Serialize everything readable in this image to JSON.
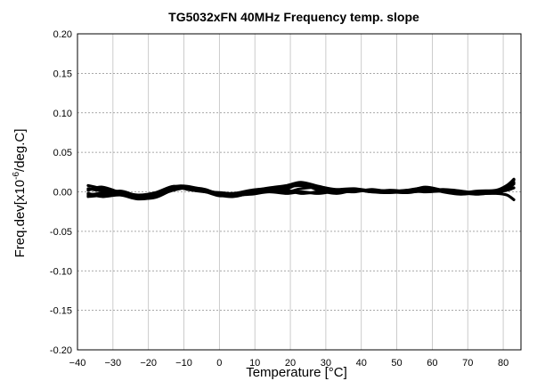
{
  "chart_data": {
    "type": "line",
    "title": "TG5032xFN 40MHz Frequency temp. slope",
    "xlabel": "Temperature [°C]",
    "ylabel_prefix": "Freq.dev[x10",
    "ylabel_exponent": "-6",
    "ylabel_suffix": "/deg.C]",
    "xlim": [
      -40,
      85
    ],
    "ylim": [
      -0.2,
      0.2
    ],
    "x_ticks": [
      -40,
      -30,
      -20,
      -10,
      0,
      10,
      20,
      30,
      40,
      50,
      60,
      70,
      80
    ],
    "x_tick_labels": [
      "−40",
      "−30",
      "−20",
      "−10",
      "0",
      "10",
      "20",
      "30",
      "40",
      "50",
      "60",
      "70",
      "80"
    ],
    "y_ticks": [
      -0.2,
      -0.15,
      -0.1,
      -0.05,
      0,
      0.05,
      0.1,
      0.15,
      0.2
    ],
    "y_tick_labels": [
      "-0.20",
      "-0.15",
      "-0.10",
      "-0.05",
      "0.00",
      "0.05",
      "0.10",
      "0.15",
      "0.20"
    ],
    "grid": {
      "x": true,
      "y": true,
      "x_style": "solid",
      "y_style": "dotted"
    },
    "line_color": "#000000",
    "series": [
      {
        "x": [
          -37,
          -33,
          -28,
          -23,
          -18,
          -13,
          -9,
          -4,
          0,
          4,
          9,
          14,
          19,
          23,
          28,
          33,
          38,
          43,
          48,
          53,
          58,
          63,
          68,
          73,
          78,
          81,
          83
        ],
        "y": [
          0.004,
          0.001,
          -0.002,
          -0.006,
          -0.003,
          0.005,
          0.004,
          0.001,
          -0.003,
          -0.004,
          0.0,
          0.003,
          0.006,
          0.008,
          0.004,
          0.001,
          0.003,
          0.0,
          -0.001,
          0.001,
          0.004,
          0.001,
          -0.002,
          0.0,
          0.001,
          0.006,
          0.015
        ]
      },
      {
        "x": [
          -37,
          -33,
          -28,
          -23,
          -18,
          -13,
          -9,
          -4,
          0,
          4,
          9,
          14,
          19,
          23,
          28,
          33,
          38,
          43,
          48,
          53,
          58,
          63,
          68,
          73,
          78,
          81,
          83
        ],
        "y": [
          -0.004,
          -0.002,
          -0.003,
          -0.008,
          -0.007,
          0.003,
          0.006,
          0.002,
          -0.002,
          -0.005,
          -0.002,
          0.001,
          0.004,
          0.01,
          0.002,
          -0.002,
          0.002,
          0.002,
          0.0,
          -0.001,
          0.002,
          0.002,
          0.0,
          -0.002,
          -0.001,
          0.003,
          0.01
        ]
      },
      {
        "x": [
          -37,
          -33,
          -28,
          -23,
          -18,
          -13,
          -9,
          -4,
          0,
          4,
          9,
          14,
          19,
          23,
          28,
          33,
          38,
          43,
          48,
          53,
          58,
          63,
          68,
          73,
          78,
          81,
          83
        ],
        "y": [
          0.008,
          0.004,
          0.0,
          -0.004,
          -0.001,
          0.007,
          0.003,
          0.0,
          -0.001,
          -0.002,
          0.002,
          0.004,
          0.0,
          0.004,
          0.006,
          0.003,
          0.004,
          0.001,
          0.0,
          0.002,
          0.005,
          0.0,
          -0.003,
          -0.001,
          0.0,
          0.004,
          0.012
        ]
      },
      {
        "x": [
          -37,
          -33,
          -28,
          -23,
          -18,
          -13,
          -9,
          -4,
          0,
          4,
          9,
          14,
          19,
          23,
          28,
          33,
          38,
          43,
          48,
          53,
          58,
          63,
          68,
          73,
          78,
          81,
          83
        ],
        "y": [
          -0.006,
          -0.004,
          0.001,
          -0.005,
          -0.005,
          0.002,
          0.005,
          0.003,
          -0.004,
          -0.006,
          -0.001,
          0.002,
          0.002,
          -0.002,
          0.0,
          0.0,
          0.001,
          0.002,
          0.001,
          0.0,
          0.001,
          0.003,
          0.001,
          -0.002,
          -0.002,
          -0.004,
          -0.01
        ]
      },
      {
        "x": [
          -37,
          -33,
          -28,
          -23,
          -18,
          -13,
          -9,
          -4,
          0,
          4,
          9,
          14,
          19,
          23,
          28,
          33,
          38,
          43,
          48,
          53,
          58,
          63,
          68,
          73,
          78,
          81,
          83
        ],
        "y": [
          0.002,
          0.006,
          -0.001,
          -0.007,
          -0.004,
          0.006,
          0.007,
          0.002,
          -0.002,
          -0.003,
          0.001,
          0.005,
          0.008,
          0.012,
          0.007,
          0.002,
          0.003,
          0.0,
          0.002,
          0.001,
          0.006,
          0.002,
          -0.001,
          0.001,
          0.002,
          0.008,
          0.016
        ]
      },
      {
        "x": [
          -37,
          -33,
          -28,
          -23,
          -18,
          -13,
          -9,
          -4,
          0,
          4,
          9,
          14,
          19,
          23,
          28,
          33,
          38,
          43,
          48,
          53,
          58,
          63,
          68,
          73,
          78,
          81,
          83
        ],
        "y": [
          -0.002,
          -0.006,
          -0.004,
          -0.009,
          -0.006,
          0.004,
          0.004,
          0.0,
          -0.005,
          -0.004,
          -0.003,
          0.0,
          -0.002,
          0.0,
          -0.002,
          0.001,
          0.0,
          0.003,
          0.0,
          0.002,
          0.0,
          0.001,
          -0.001,
          -0.003,
          0.0,
          0.002,
          0.005
        ]
      }
    ]
  }
}
